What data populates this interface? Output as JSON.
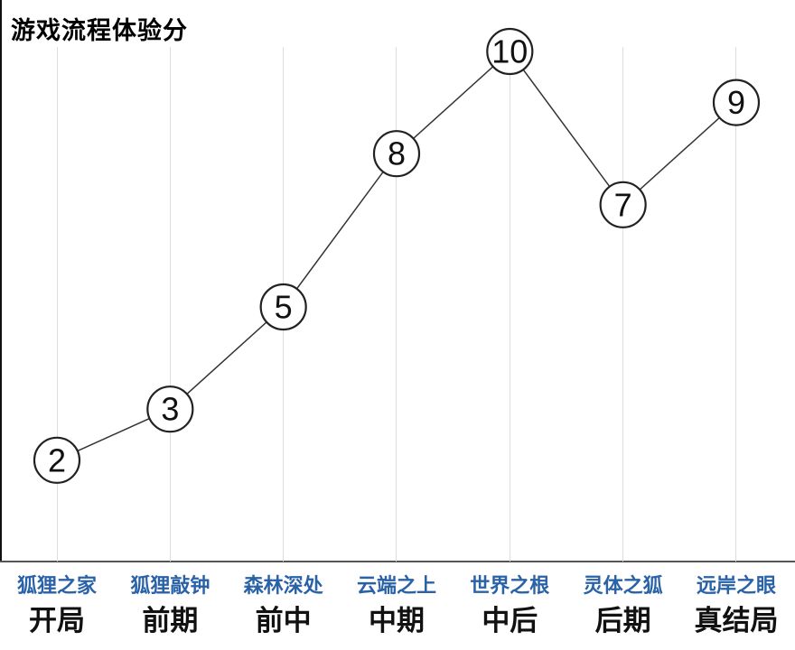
{
  "chart_data": {
    "type": "line",
    "title": "游戏流程体验分",
    "categories": [
      "开局",
      "前期",
      "前中",
      "中期",
      "中后",
      "后期",
      "真结局"
    ],
    "chapter_labels": [
      "狐狸之家",
      "狐狸敲钟",
      "森林深处",
      "云端之上",
      "世界之根",
      "灵体之狐",
      "远岸之眼"
    ],
    "values": [
      2,
      3,
      5,
      8,
      10,
      7,
      9
    ],
    "ylabel": "",
    "xlabel": "",
    "ylim": [
      0,
      11
    ],
    "grid": "vertical-only",
    "legend": "none",
    "marker_style": "circled-value-labels",
    "colors": {
      "chapter_label": "#2a62a8",
      "stage_label": "#111111",
      "line": "#333333",
      "marker_stroke": "#222222",
      "marker_fill": "#ffffff",
      "value_text": "#111111",
      "gridline": "#dddddd",
      "axis": "#555555"
    }
  }
}
